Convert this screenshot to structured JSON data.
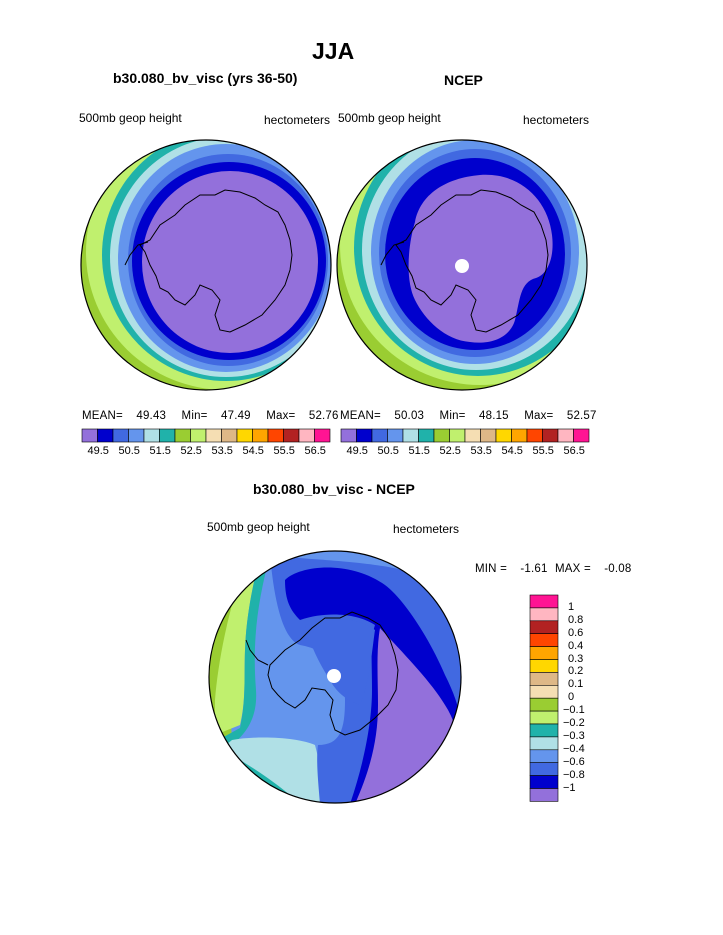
{
  "page": {
    "title": "JJA"
  },
  "colors": {
    "palette": [
      "#9370DB",
      "#0000CD",
      "#4169E1",
      "#6495ED",
      "#B0E0E6",
      "#20B2AA",
      "#9ACD32",
      "#C0F06E",
      "#F5DEB3",
      "#DEB887",
      "#FFD700",
      "#FFA500",
      "#FF4500",
      "#B22222",
      "#FFB6C1",
      "#FF1493"
    ],
    "diff_palette": [
      "#9370DB",
      "#0000CD",
      "#4169E1",
      "#6495ED",
      "#B0E0E6",
      "#20B2AA",
      "#C0F06E",
      "#9ACD32",
      "#F5DEB3",
      "#DEB887",
      "#FFD700",
      "#FFA500",
      "#FF4500",
      "#B22222",
      "#FFB6C1",
      "#FF1493"
    ]
  },
  "chart_data": [
    {
      "type": "heatmap",
      "projection": "south-polar-stereographic",
      "title": "b30.080_bv_visc (yrs 36-50)",
      "left_label": "500mb geop height",
      "right_label": "hectometers",
      "stats": {
        "mean_label": "MEAN=",
        "mean": "49.43",
        "min_label": "Min=",
        "min": "47.49",
        "max_label": "Max=",
        "max": "52.76"
      },
      "contour_levels": [
        49.5,
        50,
        50.5,
        51,
        51.5,
        52,
        52.5,
        53,
        53.5,
        54,
        54.5,
        55,
        55.5,
        56,
        56.5
      ],
      "colorbar_ticks": [
        "49.5",
        "50.5",
        "51.5",
        "52.5",
        "53.5",
        "54.5",
        "55.5",
        "56.5"
      ]
    },
    {
      "type": "heatmap",
      "projection": "south-polar-stereographic",
      "title": "NCEP",
      "left_label": "500mb geop height",
      "right_label": "hectometers",
      "stats": {
        "mean_label": "MEAN=",
        "mean": "50.03",
        "min_label": "Min=",
        "min": "48.15",
        "max_label": "Max=",
        "max": "52.57"
      },
      "contour_levels": [
        49.5,
        50,
        50.5,
        51,
        51.5,
        52,
        52.5,
        53,
        53.5,
        54,
        54.5,
        55,
        55.5,
        56,
        56.5
      ],
      "colorbar_ticks": [
        "49.5",
        "50.5",
        "51.5",
        "52.5",
        "53.5",
        "54.5",
        "55.5",
        "56.5"
      ]
    },
    {
      "type": "heatmap",
      "projection": "south-polar-stereographic",
      "title": "b30.080_bv_visc - NCEP",
      "left_label": "500mb geop height",
      "right_label": "hectometers",
      "stats": {
        "min_label": "MIN =",
        "min": "-1.61",
        "max_label": "MAX =",
        "max": "-0.08"
      },
      "contour_levels": [
        1,
        0.8,
        0.6,
        0.4,
        0.3,
        0.2,
        0.1,
        0,
        -0.1,
        -0.2,
        -0.3,
        -0.4,
        -0.6,
        -0.8,
        -1
      ],
      "colorbar_ticks": [
        "1",
        "0.8",
        "0.6",
        "0.4",
        "0.3",
        "0.2",
        "0.1",
        "0",
        "−0.1",
        "−0.2",
        "−0.3",
        "−0.4",
        "−0.6",
        "−0.8",
        "−1"
      ]
    }
  ]
}
